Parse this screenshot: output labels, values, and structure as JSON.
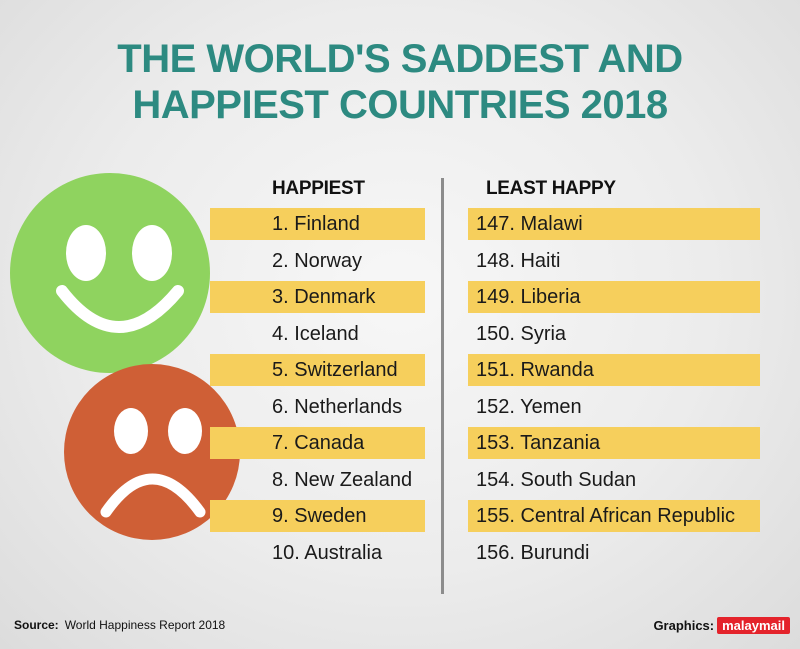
{
  "title_line1": "THE WORLD'S SADDEST AND",
  "title_line2": "HAPPIEST COUNTRIES 2018",
  "happiest": {
    "heading": "HAPPIEST",
    "items": [
      "1. Finland",
      "2. Norway",
      "3. Denmark",
      "4. Iceland",
      "5. Switzerland",
      "6. Netherlands",
      "7. Canada",
      "8. New Zealand",
      "9. Sweden",
      "10. Australia"
    ]
  },
  "least_happy": {
    "heading": "LEAST HAPPY",
    "items": [
      "147. Malawi",
      "148. Haiti",
      "149. Liberia",
      "150. Syria",
      "151. Rwanda",
      "152. Yemen",
      "153. Tanzania",
      "154. South Sudan",
      "155. Central African Republic",
      "156. Burundi"
    ]
  },
  "footer": {
    "source_label": "Source:",
    "source_text": "World Happiness Report 2018",
    "graphics_label": "Graphics:",
    "brand": "malaymail"
  },
  "colors": {
    "title": "#2d8a81",
    "highlight": "#f6cf5c",
    "happy_face": "#8fd35f",
    "sad_face": "#cf5f36",
    "brand": "#e4232b"
  },
  "icons": [
    "smiley-face-icon",
    "sad-face-icon"
  ]
}
